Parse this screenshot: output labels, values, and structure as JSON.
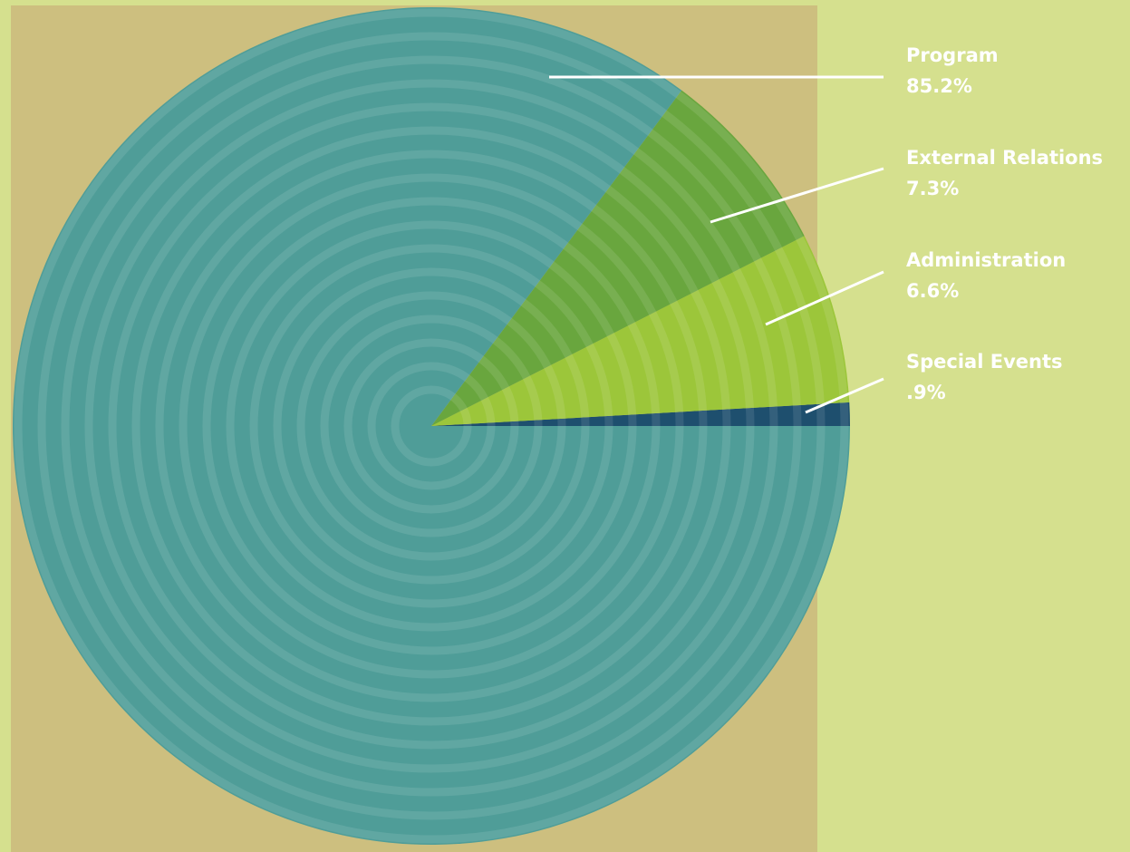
{
  "chart_data": {
    "type": "pie",
    "start_angle_deg": 0,
    "direction": "counterclockwise",
    "legend": "right",
    "slices": [
      {
        "label": "Program",
        "display": "85.2%",
        "value": 85.2,
        "color": "#4f9d98"
      },
      {
        "label": "External Relations",
        "display": "7.3%",
        "value": 7.3,
        "color": "#69a63e"
      },
      {
        "label": "Administration",
        "display": "6.6%",
        "value": 6.6,
        "color": "#9cc63a"
      },
      {
        "label": "Special Events",
        "display": ".9%",
        "value": 0.9,
        "color": "#1e4f6e"
      }
    ]
  },
  "colors": {
    "background": "#d5e08e",
    "panel": "#cdbf7f",
    "leader": "#ffffff",
    "label_text": "#ffffff"
  }
}
